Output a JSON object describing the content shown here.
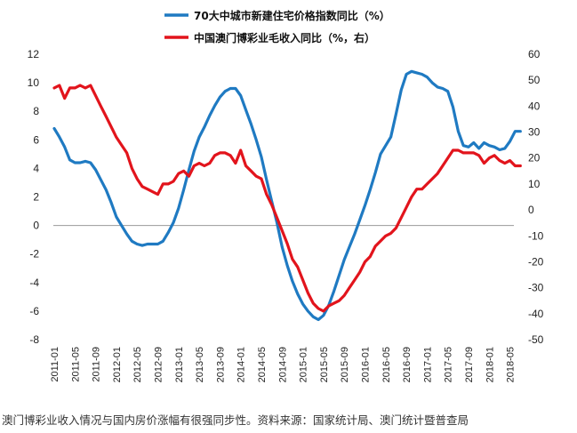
{
  "caption": "澳门博彩业收入情况与国内房价涨幅有很强同步性。资料来源：国家统计局、澳门统计暨普查局",
  "colors": {
    "housing": "#1f7ac2",
    "gaming": "#e2141c"
  },
  "chart_data": {
    "type": "line",
    "x_ticks": [
      "2011-01",
      "2011-05",
      "2011-09",
      "2012-01",
      "2012-05",
      "2012-09",
      "2013-01",
      "2013-05",
      "2013-09",
      "2014-01",
      "2014-05",
      "2014-09",
      "2015-01",
      "2015-05",
      "2015-09",
      "2016-01",
      "2016-05",
      "2016-09",
      "2017-01",
      "2017-05",
      "2017-09",
      "2018-01",
      "2018-05"
    ],
    "y_left": {
      "min": -8,
      "max": 12,
      "ticks": [
        "12",
        "10",
        "8",
        "6",
        "4",
        "2",
        "0",
        "-2",
        "-4",
        "-6",
        "-8"
      ]
    },
    "y_right": {
      "min": -50,
      "max": 60,
      "ticks": [
        "60",
        "50",
        "40",
        "30",
        "20",
        "10",
        "0",
        "-10",
        "-20",
        "-30",
        "-40",
        "-50"
      ]
    },
    "grid": false,
    "legend_position": "top",
    "series": [
      {
        "name": "70大中城市新建住宅价格指数同比（%）",
        "axis": "left",
        "x": [
          "2011-01",
          "2011-02",
          "2011-03",
          "2011-04",
          "2011-05",
          "2011-06",
          "2011-07",
          "2011-08",
          "2011-09",
          "2011-10",
          "2011-11",
          "2011-12",
          "2012-01",
          "2012-02",
          "2012-03",
          "2012-04",
          "2012-05",
          "2012-06",
          "2012-07",
          "2012-08",
          "2012-09",
          "2012-10",
          "2012-11",
          "2012-12",
          "2013-01",
          "2013-02",
          "2013-03",
          "2013-04",
          "2013-05",
          "2013-06",
          "2013-07",
          "2013-08",
          "2013-09",
          "2013-10",
          "2013-11",
          "2013-12",
          "2014-01",
          "2014-02",
          "2014-03",
          "2014-04",
          "2014-05",
          "2014-06",
          "2014-07",
          "2014-08",
          "2014-09",
          "2014-10",
          "2014-11",
          "2014-12",
          "2015-01",
          "2015-02",
          "2015-03",
          "2015-04",
          "2015-05",
          "2015-06",
          "2015-07",
          "2015-08",
          "2015-09",
          "2015-10",
          "2015-11",
          "2015-12",
          "2016-01",
          "2016-02",
          "2016-03",
          "2016-04",
          "2016-05",
          "2016-06",
          "2016-07",
          "2016-08",
          "2016-09",
          "2016-10",
          "2016-11",
          "2016-12",
          "2017-01",
          "2017-02",
          "2017-03",
          "2017-04",
          "2017-05",
          "2017-06",
          "2017-07",
          "2017-08",
          "2017-09",
          "2017-10",
          "2017-11",
          "2017-12",
          "2018-01",
          "2018-02",
          "2018-03",
          "2018-04",
          "2018-05",
          "2018-06",
          "2018-07"
        ],
        "values": [
          6.8,
          6.2,
          5.5,
          4.6,
          4.4,
          4.4,
          4.5,
          4.4,
          3.9,
          3.2,
          2.5,
          1.6,
          0.6,
          0.0,
          -0.6,
          -1.1,
          -1.3,
          -1.4,
          -1.3,
          -1.3,
          -1.3,
          -1.1,
          -0.5,
          0.2,
          1.2,
          2.5,
          3.9,
          5.2,
          6.2,
          6.9,
          7.7,
          8.4,
          9.0,
          9.4,
          9.6,
          9.6,
          9.1,
          8.1,
          7.1,
          6.0,
          4.8,
          3.2,
          1.7,
          0.2,
          -1.5,
          -2.8,
          -3.9,
          -4.8,
          -5.5,
          -6.0,
          -6.4,
          -6.6,
          -6.3,
          -5.6,
          -4.6,
          -3.5,
          -2.4,
          -1.5,
          -0.6,
          0.4,
          1.4,
          2.5,
          3.7,
          5.0,
          5.6,
          6.2,
          7.8,
          9.5,
          10.6,
          10.8,
          10.7,
          10.6,
          10.4,
          10.0,
          9.7,
          9.6,
          9.4,
          8.3,
          6.6,
          5.6,
          5.5,
          5.8,
          5.4,
          5.8,
          5.6,
          5.5,
          5.3,
          5.4,
          5.9,
          6.6,
          6.6
        ]
      },
      {
        "name": "中国澳门博彩业毛收入同比（%，右）",
        "axis": "right",
        "x": [
          "2011-01",
          "2011-02",
          "2011-03",
          "2011-04",
          "2011-05",
          "2011-06",
          "2011-07",
          "2011-08",
          "2011-09",
          "2011-10",
          "2011-11",
          "2011-12",
          "2012-01",
          "2012-02",
          "2012-03",
          "2012-04",
          "2012-05",
          "2012-06",
          "2012-07",
          "2012-08",
          "2012-09",
          "2012-10",
          "2012-11",
          "2012-12",
          "2013-01",
          "2013-02",
          "2013-03",
          "2013-04",
          "2013-05",
          "2013-06",
          "2013-07",
          "2013-08",
          "2013-09",
          "2013-10",
          "2013-11",
          "2013-12",
          "2014-01",
          "2014-02",
          "2014-03",
          "2014-04",
          "2014-05",
          "2014-06",
          "2014-07",
          "2014-08",
          "2014-09",
          "2014-10",
          "2014-11",
          "2014-12",
          "2015-01",
          "2015-02",
          "2015-03",
          "2015-04",
          "2015-05",
          "2015-06",
          "2015-07",
          "2015-08",
          "2015-09",
          "2015-10",
          "2015-11",
          "2015-12",
          "2016-01",
          "2016-02",
          "2016-03",
          "2016-04",
          "2016-05",
          "2016-06",
          "2016-07",
          "2016-08",
          "2016-09",
          "2016-10",
          "2016-11",
          "2016-12",
          "2017-01",
          "2017-02",
          "2017-03",
          "2017-04",
          "2017-05",
          "2017-06",
          "2017-07",
          "2017-08",
          "2017-09",
          "2017-10",
          "2017-11",
          "2017-12",
          "2018-01",
          "2018-02",
          "2018-03",
          "2018-04",
          "2018-05",
          "2018-06",
          "2018-07"
        ],
        "values": [
          47,
          48,
          43,
          47,
          47,
          48,
          47,
          48,
          44,
          40,
          36,
          32,
          28,
          25,
          22,
          16,
          12,
          9,
          8,
          7,
          6,
          10,
          10,
          11,
          14,
          15,
          13,
          17,
          18,
          17,
          18,
          21,
          22,
          22,
          21,
          18,
          23,
          17,
          15,
          13,
          12,
          6,
          2,
          -3,
          -8,
          -13,
          -19,
          -22,
          -27,
          -32,
          -36,
          -38,
          -39,
          -37,
          -36,
          -35,
          -33,
          -30,
          -27,
          -24,
          -20,
          -18,
          -14,
          -12,
          -10,
          -9,
          -7,
          -3,
          1,
          5,
          8,
          8,
          10,
          12,
          14,
          17,
          20,
          23,
          23,
          22,
          22,
          22,
          21,
          18,
          20,
          21,
          19,
          18,
          19,
          17,
          17
        ]
      }
    ]
  }
}
